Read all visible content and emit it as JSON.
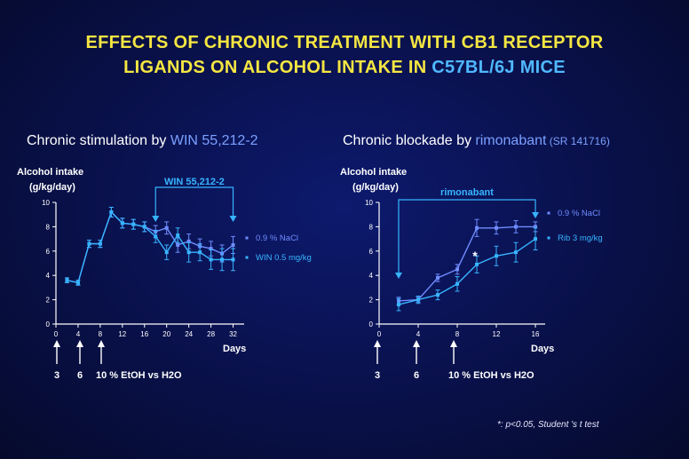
{
  "title": {
    "line1": "EFFECTS OF CHRONIC TREATMENT WITH CB1 RECEPTOR",
    "line2_prefix": "LIGANDS ON ALCOHOL INTAKE IN ",
    "line2_highlight": "C57BL/6J MICE"
  },
  "colors": {
    "title": "#f5e642",
    "highlight": "#4fb8ff",
    "series_a": "#6f8cff",
    "series_b": "#37b4ff",
    "axis": "#ffffff",
    "bracket": "#37b4ff"
  },
  "footnote": "*: p<0.05, Student 's t test",
  "chart_data": [
    {
      "type": "line",
      "title_prefix": "Chronic stimulation by ",
      "title_highlight": "WIN 55,212-2",
      "ylabel_line1": "Alcohol intake",
      "ylabel_line2": "(g/kg/day)",
      "xlabel": "Days",
      "xlim": [
        0,
        34
      ],
      "ylim": [
        0,
        10
      ],
      "xticks": [
        0,
        4,
        8,
        12,
        16,
        20,
        24,
        28,
        32
      ],
      "yticks": [
        0,
        2,
        4,
        6,
        8,
        10
      ],
      "x": [
        2,
        4,
        6,
        8,
        10,
        12,
        14,
        16,
        18,
        20,
        22,
        24,
        26,
        28,
        30,
        32
      ],
      "series": [
        {
          "name": "0.9 % NaCl",
          "color": "#6f8cff",
          "values": [
            3.6,
            3.4,
            6.6,
            6.6,
            9.2,
            8.3,
            8.2,
            8.0,
            7.6,
            7.9,
            6.5,
            6.8,
            6.4,
            6.2,
            5.8,
            6.5
          ],
          "errors": [
            0.2,
            0.2,
            0.3,
            0.3,
            0.4,
            0.4,
            0.4,
            0.4,
            0.5,
            0.5,
            0.6,
            0.6,
            0.6,
            0.6,
            0.7,
            0.7
          ]
        },
        {
          "name": "WIN 0.5 mg/kg",
          "color": "#37b4ff",
          "values": [
            3.6,
            3.4,
            6.6,
            6.6,
            9.2,
            8.3,
            8.2,
            8.0,
            7.2,
            5.9,
            7.3,
            5.9,
            5.9,
            5.3,
            5.3,
            5.3
          ],
          "errors": [
            0.2,
            0.2,
            0.3,
            0.3,
            0.4,
            0.4,
            0.4,
            0.4,
            0.5,
            0.6,
            0.6,
            0.8,
            0.7,
            0.8,
            0.9,
            0.9
          ]
        }
      ],
      "treatment_label": "WIN 55,212-2",
      "treatment_start": 18,
      "treatment_end": 32,
      "event_days": [
        3,
        6,
        10
      ],
      "event_labels": [
        "3",
        "6",
        "10 % EtOH vs H2O"
      ],
      "legend_position": "right"
    },
    {
      "type": "line",
      "title_prefix": "Chronic blockade by ",
      "title_highlight": "rimonabant",
      "title_suffix": " (SR 141716)",
      "ylabel_line1": "Alcohol intake",
      "ylabel_line2": "(g/kg/day)",
      "xlabel": "Days",
      "xlim": [
        0,
        17
      ],
      "ylim": [
        0,
        10
      ],
      "xticks": [
        0,
        4,
        8,
        12,
        16
      ],
      "yticks": [
        0,
        2,
        4,
        6,
        8,
        10
      ],
      "x": [
        2,
        4,
        6,
        8,
        10,
        12,
        14,
        16
      ],
      "series": [
        {
          "name": "0.9 % NaCl",
          "color": "#6f8cff",
          "values": [
            1.9,
            2.0,
            3.8,
            4.5,
            7.9,
            7.9,
            8.0,
            8.0
          ],
          "errors": [
            0.3,
            0.2,
            0.3,
            0.4,
            0.7,
            0.5,
            0.5,
            0.4
          ]
        },
        {
          "name": "Rib 3 mg/kg",
          "color": "#37b4ff",
          "values": [
            1.6,
            2.0,
            2.4,
            3.3,
            4.9,
            5.6,
            5.9,
            7.0
          ],
          "errors": [
            0.5,
            0.3,
            0.4,
            0.6,
            0.7,
            0.8,
            0.8,
            0.9
          ]
        }
      ],
      "treatment_label": "rimonabant",
      "treatment_start": 2,
      "treatment_end": 16,
      "significance_marker": "*",
      "significance_x": 10,
      "event_days": [
        3,
        6,
        10
      ],
      "event_labels": [
        "3",
        "6",
        "10 % EtOH vs H2O"
      ],
      "legend_position": "right"
    }
  ]
}
